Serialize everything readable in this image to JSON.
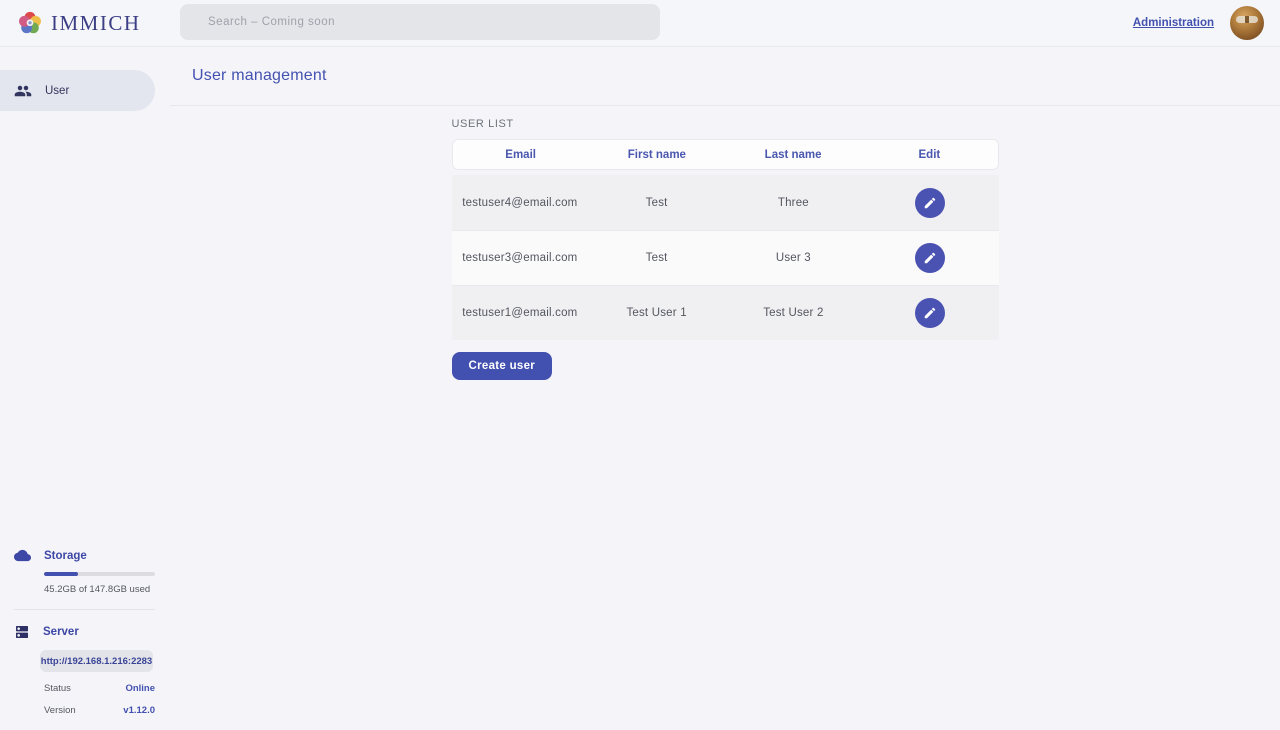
{
  "header": {
    "app_name": "IMMICH",
    "search_placeholder": "Search – Coming soon",
    "admin_link_label": "Administration"
  },
  "sidebar": {
    "nav": {
      "user_label": "User"
    },
    "storage": {
      "title": "Storage",
      "usage_caption": "45.2GB of 147.8GB used",
      "percent_used": 30.6
    },
    "server": {
      "title": "Server",
      "url": "http://192.168.1.216:2283",
      "status_label": "Status",
      "status_value": "Online",
      "version_label": "Version",
      "version_value": "v1.12.0"
    }
  },
  "main": {
    "title": "User management",
    "list_label": "USER LIST",
    "table": {
      "columns": {
        "email": "Email",
        "first_name": "First name",
        "last_name": "Last name",
        "edit": "Edit"
      },
      "rows": [
        {
          "email": "testuser4@email.com",
          "first_name": "Test",
          "last_name": "Three"
        },
        {
          "email": "testuser3@email.com",
          "first_name": "Test",
          "last_name": "User 3"
        },
        {
          "email": "testuser1@email.com",
          "first_name": "Test User 1",
          "last_name": "Test User 2"
        }
      ]
    },
    "create_button_label": "Create user"
  },
  "colors": {
    "accent_indigo": "#4250af",
    "page_background": "#f5f5f9",
    "row_gray": "#f0f0f3",
    "row_light": "#fafafb",
    "logo_petals": [
      "#dd4a4a",
      "#eebe4a",
      "#71a953",
      "#5b76c5",
      "#d25b85"
    ]
  }
}
